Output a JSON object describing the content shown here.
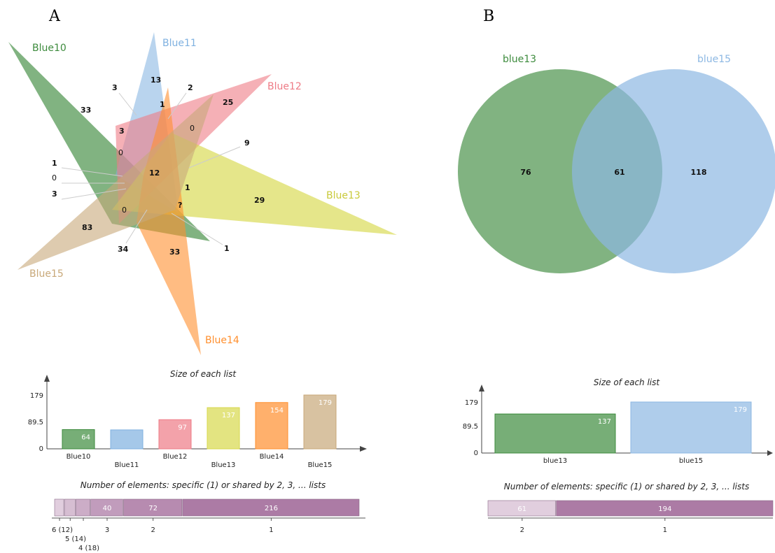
{
  "panel_a": {
    "label": "A",
    "sets": [
      {
        "name": "Blue10",
        "color": "#3d8b3d"
      },
      {
        "name": "Blue11",
        "color": "#7fb1e0"
      },
      {
        "name": "Blue12",
        "color": "#ee7b86"
      },
      {
        "name": "Blue13",
        "color": "#d7d84c"
      },
      {
        "name": "Blue14",
        "color": "#ff8f2e"
      },
      {
        "name": "Blue15",
        "color": "#c8a879"
      }
    ],
    "region_counts": [
      "13",
      "3",
      "2",
      "33",
      "1",
      "25",
      "3",
      "0",
      "0",
      "9",
      "1",
      "0",
      "3",
      "12",
      "1",
      "?",
      "29",
      "0",
      "83",
      "34",
      "33",
      "1"
    ]
  },
  "panel_b": {
    "label": "B",
    "sets": [
      {
        "name": "blue13",
        "color": "#3d8b3d"
      },
      {
        "name": "blue15",
        "color": "#8db8e3"
      }
    ],
    "region_counts": {
      "only_left": "76",
      "both": "61",
      "only_right": "118"
    }
  },
  "chart_data": [
    {
      "type": "bar",
      "title": "Size of each list",
      "categories": [
        "Blue10",
        "Blue11",
        "Blue12",
        "Blue13",
        "Blue14",
        "Blue15"
      ],
      "values": [
        64,
        63,
        97,
        137,
        154,
        179
      ],
      "colors": [
        "#3d8b3d",
        "#7fb1e0",
        "#ee7b86",
        "#d7d84c",
        "#ff8f2e",
        "#c8a879"
      ],
      "yticks": [
        "179",
        "89.5",
        "0"
      ],
      "ylim": [
        0,
        179
      ]
    },
    {
      "type": "bar",
      "title": "Number of elements: specific (1) or shared by 2, 3, ... lists",
      "orientation": "horizontal-stacked",
      "segments": [
        {
          "label": "6 (12)",
          "value": 12,
          "text": ""
        },
        {
          "label": "5 (14)",
          "value": 14,
          "text": ""
        },
        {
          "label": "4 (18)",
          "value": 18,
          "text": ""
        },
        {
          "label": "3",
          "value": 40,
          "text": "40"
        },
        {
          "label": "2",
          "value": 72,
          "text": "72"
        },
        {
          "label": "1",
          "value": 216,
          "text": "216"
        }
      ],
      "color": "#a874a0"
    },
    {
      "type": "bar",
      "title": "Size of each list",
      "categories": [
        "blue13",
        "blue15"
      ],
      "values": [
        137,
        179
      ],
      "colors": [
        "#3d8b3d",
        "#8db8e3"
      ],
      "yticks": [
        "179",
        "89.5",
        "0"
      ],
      "ylim": [
        0,
        179
      ]
    },
    {
      "type": "bar",
      "title": "Number of elements: specific (1) or shared by 2, 3, ... lists",
      "orientation": "horizontal-stacked",
      "segments": [
        {
          "label": "2",
          "value": 61,
          "text": "61"
        },
        {
          "label": "1",
          "value": 194,
          "text": "194"
        }
      ],
      "color": "#a874a0"
    }
  ]
}
